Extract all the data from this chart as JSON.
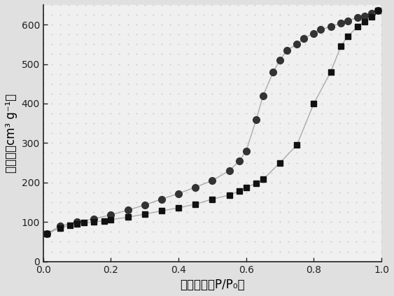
{
  "adsorption_x": [
    0.01,
    0.05,
    0.08,
    0.1,
    0.12,
    0.15,
    0.18,
    0.2,
    0.25,
    0.3,
    0.35,
    0.4,
    0.45,
    0.5,
    0.55,
    0.58,
    0.6,
    0.63,
    0.65,
    0.7,
    0.75,
    0.8,
    0.85,
    0.88,
    0.9,
    0.93,
    0.95,
    0.97,
    0.99
  ],
  "adsorption_y": [
    70,
    85,
    92,
    95,
    98,
    100,
    103,
    106,
    112,
    120,
    128,
    136,
    145,
    158,
    168,
    178,
    188,
    198,
    208,
    250,
    295,
    400,
    480,
    545,
    570,
    595,
    608,
    620,
    635
  ],
  "desorption_x": [
    0.99,
    0.97,
    0.95,
    0.93,
    0.9,
    0.88,
    0.85,
    0.82,
    0.8,
    0.77,
    0.75,
    0.72,
    0.7,
    0.68,
    0.65,
    0.63,
    0.6,
    0.58,
    0.55,
    0.5,
    0.45,
    0.4,
    0.35,
    0.3,
    0.25,
    0.2,
    0.15,
    0.1,
    0.05,
    0.01
  ],
  "desorption_y": [
    635,
    628,
    622,
    618,
    610,
    604,
    595,
    587,
    578,
    565,
    550,
    535,
    510,
    480,
    420,
    360,
    280,
    255,
    230,
    205,
    188,
    172,
    158,
    143,
    130,
    118,
    108,
    100,
    90,
    70
  ],
  "xlabel": "相对压力（P/P₀）",
  "ylabel": "孔体积（cm³ g⁻¹）",
  "xlim": [
    0.0,
    1.0
  ],
  "ylim": [
    0,
    650
  ],
  "xticks": [
    0.0,
    0.2,
    0.4,
    0.6,
    0.8,
    1.0
  ],
  "yticks": [
    0,
    100,
    200,
    300,
    400,
    500,
    600
  ],
  "line_color": "#aaaaaa",
  "square_color": "#111111",
  "circle_color": "#333333",
  "bg_color": "#f0f0f0",
  "fig_bg_color": "#e0e0e0",
  "marker_size_sq": 6,
  "marker_size_ci": 7,
  "line_width": 1.0,
  "font_size_label": 12,
  "font_size_tick": 10
}
